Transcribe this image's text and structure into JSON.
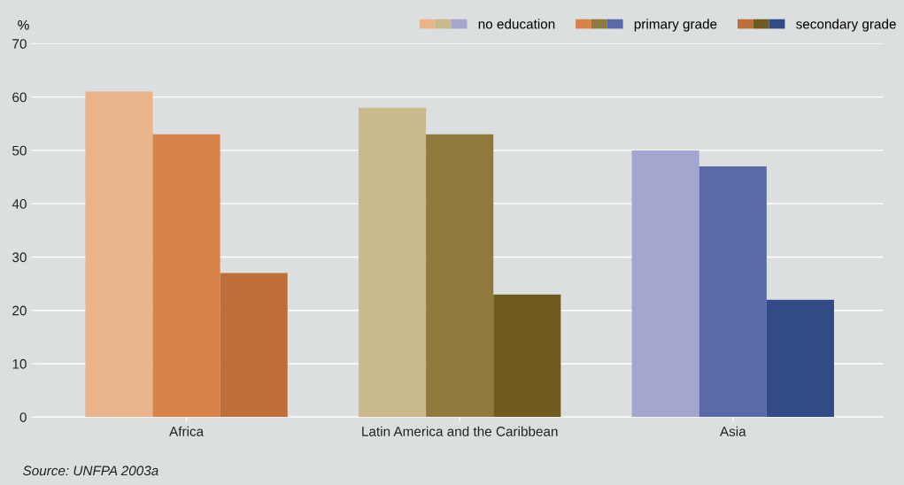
{
  "chart_data": {
    "type": "bar",
    "ylabel": "%",
    "categories": [
      "Africa",
      "Latin America and the Caribbean",
      "Asia"
    ],
    "series": [
      {
        "name": "no education",
        "colors": [
          "#eab48a",
          "#cbb98e",
          "#a3a6cf"
        ],
        "values": [
          61,
          58,
          50
        ]
      },
      {
        "name": "primary grade",
        "colors": [
          "#d9834a",
          "#8e7a3c",
          "#5a6aa6"
        ],
        "values": [
          53,
          53,
          47
        ]
      },
      {
        "name": "secondary grade",
        "colors": [
          "#c06e38",
          "#6f5a20",
          "#324a86"
        ],
        "values": [
          27,
          23,
          22
        ]
      }
    ],
    "ylim": [
      0,
      70
    ],
    "yticks": [
      0,
      10,
      20,
      30,
      40,
      50,
      60,
      70
    ],
    "grid": "y",
    "legend": "top right",
    "annotations": [
      "Source: UNFPA 2003a"
    ]
  }
}
